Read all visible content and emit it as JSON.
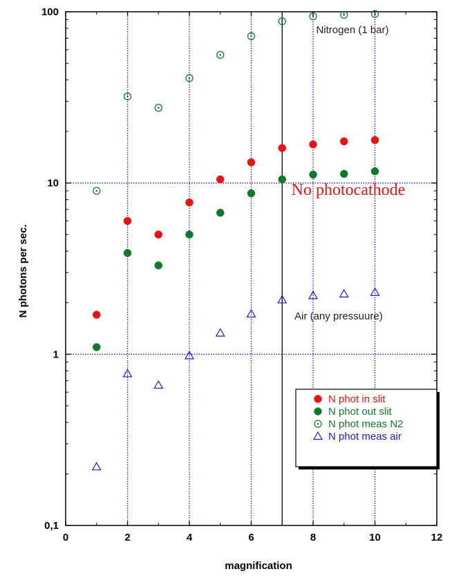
{
  "chart_data": {
    "type": "scatter",
    "xlabel": "magnification",
    "ylabel": "N photons per sec.",
    "xlim": [
      0,
      12
    ],
    "ylim": [
      0.1,
      100
    ],
    "yscale": "log",
    "x_ticks": [
      0,
      2,
      4,
      6,
      8,
      10,
      12
    ],
    "y_ticks": [
      0.1,
      1,
      10,
      100
    ],
    "y_tick_labels": [
      "0,1",
      "1",
      "10",
      "100"
    ],
    "grid": true,
    "vertical_reference_line_x": 7,
    "legend_position": "bottom-right",
    "colors": {
      "red": "#ee1111",
      "green": "#117a2a",
      "blue": "#1a1ad6",
      "grid": "#1a1ad6"
    },
    "annotations": [
      {
        "text": "Nitrogen (1 bar)",
        "x": 8.1,
        "y": 75,
        "color": "#222222"
      },
      {
        "text": "No photocathode",
        "x": 7.3,
        "y": 8.5,
        "color": "#ee1111"
      },
      {
        "text": "Air (any pressuure)",
        "x": 7.4,
        "y": 1.6,
        "color": "#222222"
      }
    ],
    "series": [
      {
        "name": "N phot in slit",
        "marker": "filled-circle",
        "color": "#ee1111",
        "x": [
          1,
          2,
          3,
          4,
          5,
          6,
          7,
          8,
          9,
          10
        ],
        "values": [
          1.7,
          6.0,
          5.0,
          7.7,
          10.5,
          13.2,
          16.0,
          16.8,
          17.5,
          17.8
        ]
      },
      {
        "name": "N phot out slit",
        "marker": "filled-circle",
        "color": "#117a2a",
        "x": [
          1,
          2,
          3,
          4,
          5,
          6,
          7,
          8,
          9,
          10
        ],
        "values": [
          1.1,
          3.9,
          3.3,
          5.0,
          6.7,
          8.7,
          10.5,
          11.2,
          11.3,
          11.7
        ]
      },
      {
        "name": "N phot meas N2",
        "marker": "open-circle",
        "color": "#117a2a",
        "x": [
          1,
          2,
          3,
          4,
          5,
          6,
          7,
          8,
          9,
          10
        ],
        "values": [
          9.0,
          32,
          27.5,
          41,
          56,
          72,
          88,
          94,
          96,
          97
        ]
      },
      {
        "name": "N phot meas air",
        "marker": "open-triangle",
        "color": "#1a1ad6",
        "x": [
          1,
          2,
          3,
          4,
          5,
          6,
          7,
          8,
          9,
          10
        ],
        "values": [
          0.22,
          0.77,
          0.66,
          0.98,
          1.33,
          1.72,
          2.08,
          2.2,
          2.25,
          2.3
        ]
      }
    ]
  }
}
